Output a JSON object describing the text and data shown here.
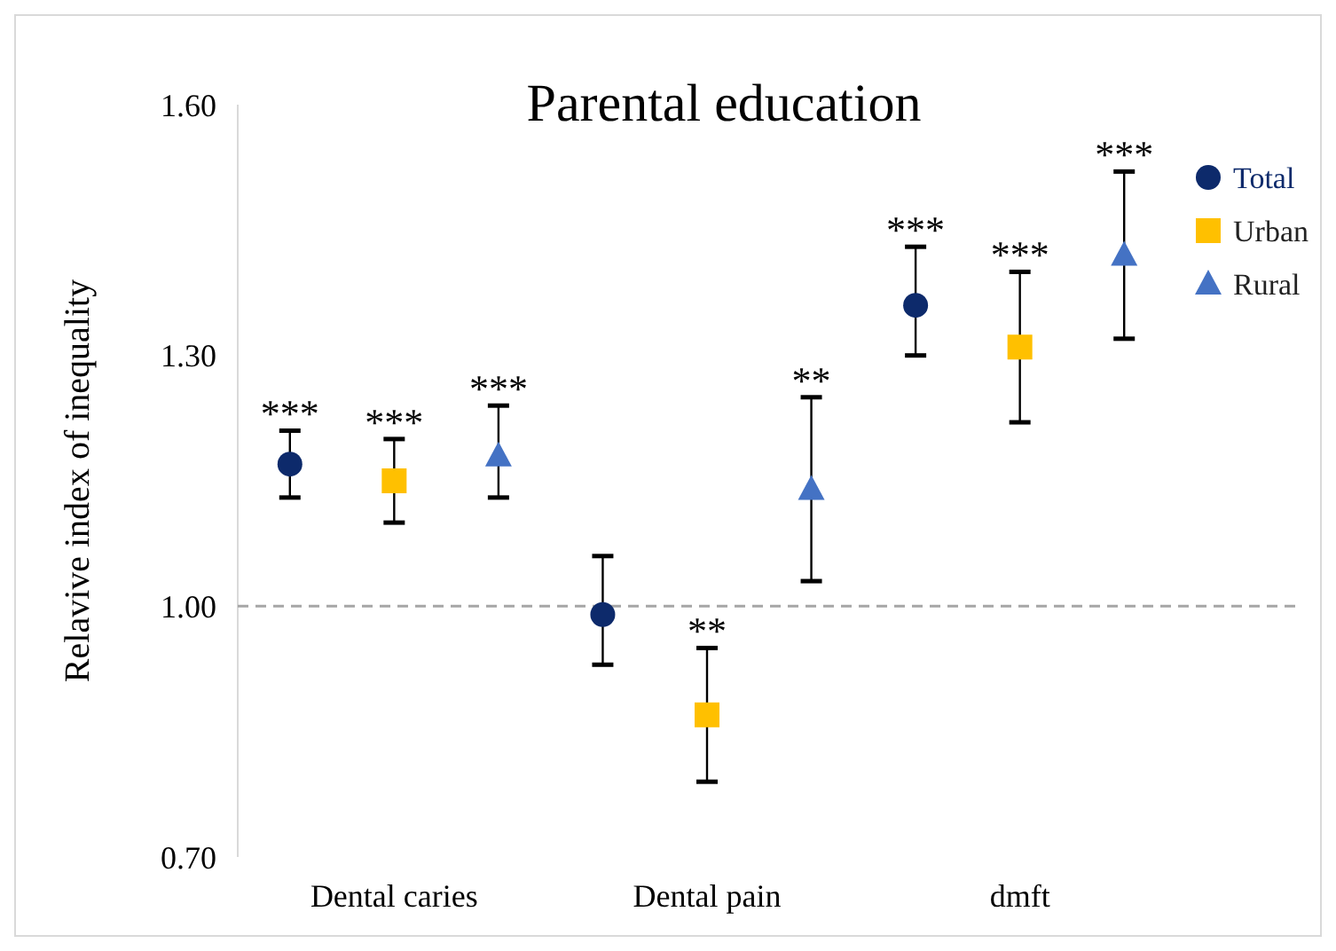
{
  "chart_data": {
    "type": "scatter",
    "title": "Parental education",
    "ylabel": "Relavive index of inequality",
    "categories": [
      "Dental caries",
      "Dental pain",
      "dmft"
    ],
    "ylim": [
      0.7,
      1.6
    ],
    "yticks": [
      {
        "value": 0.7,
        "label": "0.70"
      },
      {
        "value": 1.0,
        "label": "1.00"
      },
      {
        "value": 1.3,
        "label": "1.30"
      },
      {
        "value": 1.6,
        "label": "1.60"
      }
    ],
    "grid": false,
    "legend": "top right",
    "series": [
      {
        "name": "Total",
        "color": "#0d2a6b",
        "marker": "circle",
        "values": [
          1.17,
          0.99,
          1.36
        ],
        "errors": [
          [
            1.13,
            1.21
          ],
          [
            0.93,
            1.06
          ],
          [
            1.3,
            1.43
          ]
        ],
        "value_labels": [
          "***",
          null,
          "***"
        ]
      },
      {
        "name": "Urban",
        "color": "#ffc000",
        "marker": "square",
        "values": [
          1.15,
          0.87,
          1.31
        ],
        "errors": [
          [
            1.1,
            1.2
          ],
          [
            0.79,
            0.95
          ],
          [
            1.22,
            1.4
          ]
        ],
        "value_labels": [
          "***",
          "**",
          "***"
        ]
      },
      {
        "name": "Rural",
        "color": "#4472c4",
        "marker": "triangle",
        "values": [
          1.18,
          1.14,
          1.42
        ],
        "errors": [
          [
            1.13,
            1.24
          ],
          [
            1.03,
            1.25
          ],
          [
            1.32,
            1.52
          ]
        ],
        "value_labels": [
          "***",
          "**",
          "***"
        ]
      }
    ],
    "ref_lines": [
      {
        "axis": "y",
        "value": 1.0,
        "color": "#a6a6a6",
        "line_style": "dashed"
      }
    ]
  }
}
